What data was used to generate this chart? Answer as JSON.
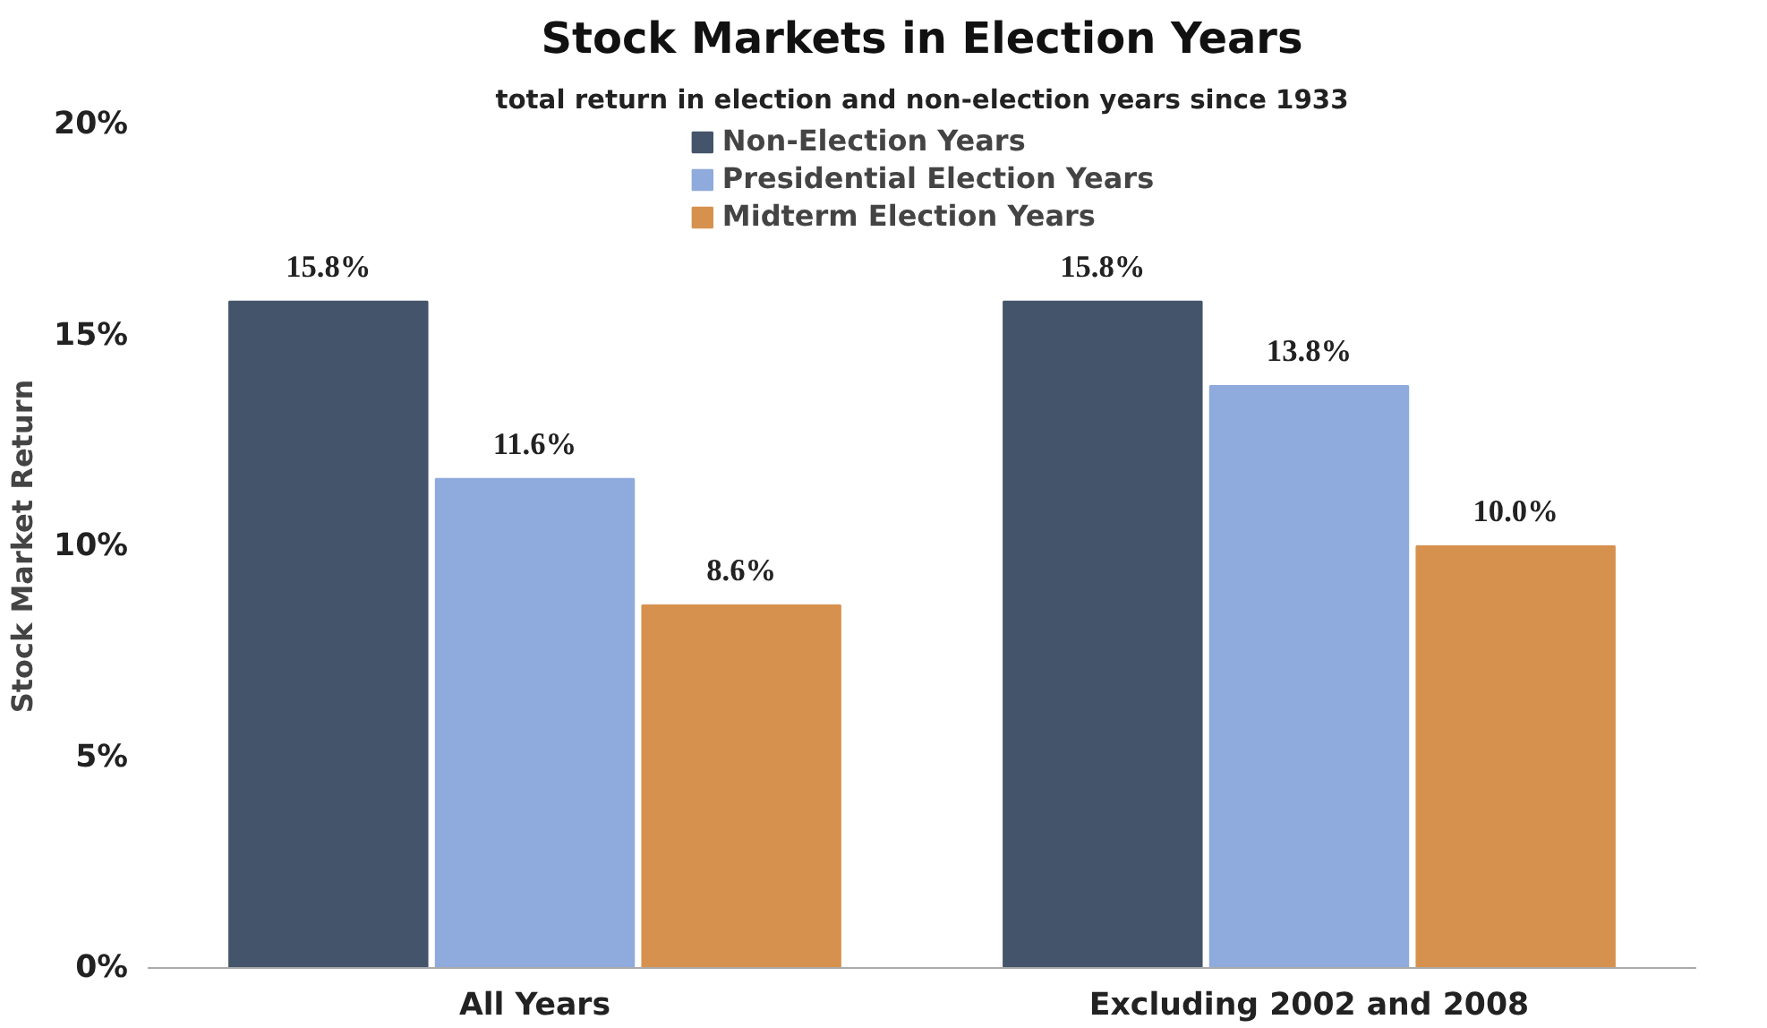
{
  "chart_data": {
    "type": "bar",
    "title": "Stock Markets in Election Years",
    "subtitle": "total return in election and non-election years since 1933",
    "ylabel": "Stock Market Return",
    "categories": [
      "All Years",
      "Excluding 2002 and 2008"
    ],
    "series": [
      {
        "name": "Non-Election Years",
        "color": "#44546a",
        "values": [
          15.8,
          15.8
        ],
        "value_labels": [
          "15.8%",
          "15.8%"
        ]
      },
      {
        "name": "Presidential Election Years",
        "color": "#8faadc",
        "values": [
          11.6,
          13.8
        ],
        "value_labels": [
          "11.6%",
          "13.8%"
        ]
      },
      {
        "name": "Midterm Election Years",
        "color": "#d6914e",
        "values": [
          8.6,
          10.0
        ],
        "value_labels": [
          "8.6%",
          "10.0%"
        ]
      }
    ],
    "ylim": [
      0,
      20
    ],
    "yticks": [
      {
        "value": 0,
        "label": "0%"
      },
      {
        "value": 5,
        "label": "5%"
      },
      {
        "value": 10,
        "label": "10%"
      },
      {
        "value": 15,
        "label": "15%"
      },
      {
        "value": 20,
        "label": "20%"
      }
    ],
    "grid": false,
    "legend": "top"
  }
}
